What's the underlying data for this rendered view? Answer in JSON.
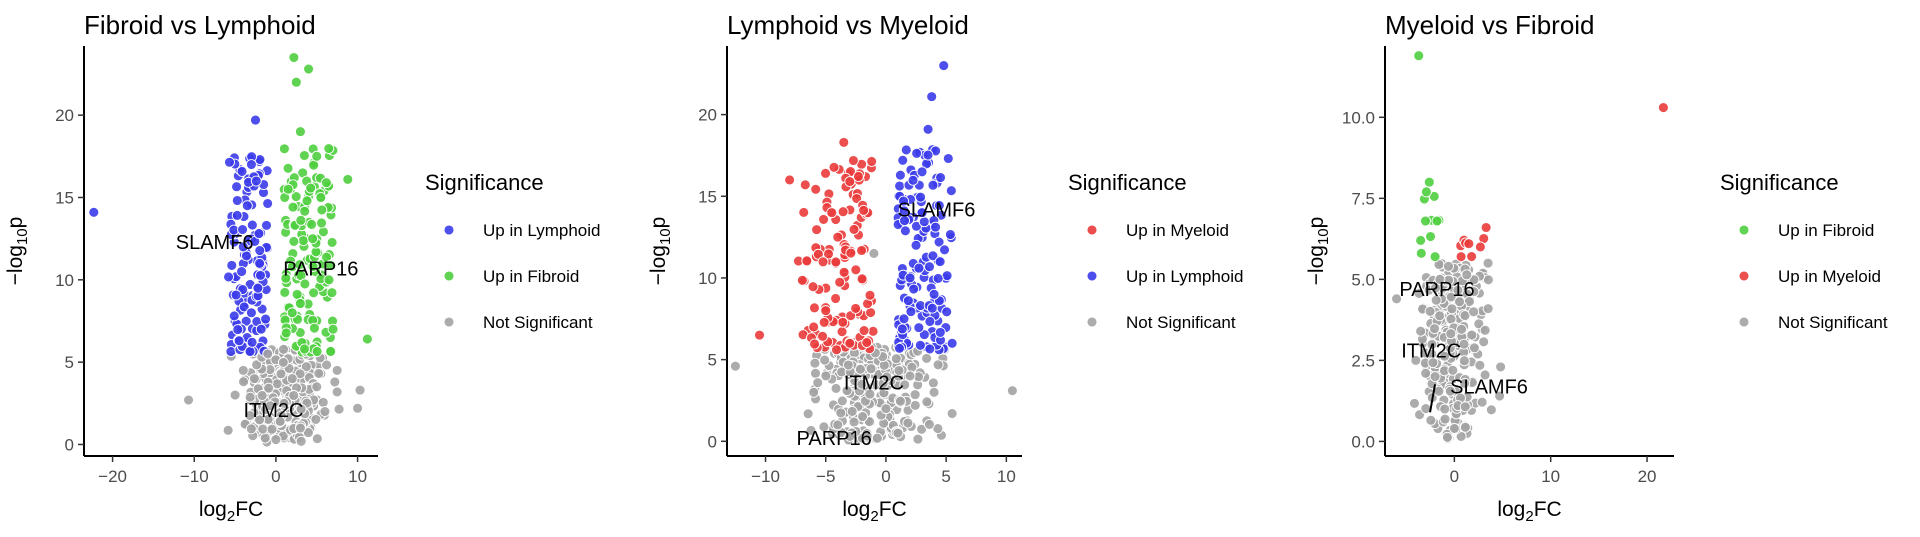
{
  "chart_data": [
    {
      "type": "scatter",
      "title": "Fibroid vs Lymphoid",
      "xlabel": "log2FC",
      "ylabel": "−log10p",
      "xlim": [
        -23.5,
        12.5
      ],
      "ylim": [
        -0.7,
        24.2
      ],
      "xticks": [
        -20,
        -10,
        0,
        10
      ],
      "yticks": [
        0,
        5,
        10,
        15,
        20
      ],
      "legend": {
        "title": "Significance",
        "position": "right",
        "entries": [
          {
            "label": "Up in Lymphoid",
            "color": "#3b3bea"
          },
          {
            "label": "Up in Fibroid",
            "color": "#4fcf3f"
          },
          {
            "label": "Not Significant",
            "color": "#a3a3a3"
          }
        ]
      },
      "series": [
        {
          "name": "Up in Lymphoid",
          "color": "#3b3bea",
          "points": [
            [
              -22.3,
              14.1
            ],
            [
              -2.5,
              19.7
            ],
            [
              -3.0,
              17.0
            ],
            [
              -2.4,
              16.0
            ],
            [
              -4.0,
              12.0
            ],
            [
              -3.0,
              8.0
            ],
            [
              -4.5,
              6.3
            ],
            [
              -2.0,
              11.0
            ],
            [
              -3.5,
              14.5
            ],
            [
              -2.2,
              9.5
            ],
            [
              -4.2,
              10.5
            ],
            [
              -1.8,
              7.0
            ]
          ]
        },
        {
          "name": "Up in Fibroid",
          "color": "#4fcf3f",
          "points": [
            [
              2.2,
              23.5
            ],
            [
              4.0,
              22.8
            ],
            [
              2.5,
              22.0
            ],
            [
              8.8,
              16.1
            ],
            [
              11.2,
              6.4
            ],
            [
              3.0,
              19.0
            ],
            [
              5.5,
              15.0
            ],
            [
              4.5,
              12.5
            ],
            [
              2.0,
              8.0
            ],
            [
              6.5,
              10.0
            ],
            [
              1.5,
              15.5
            ],
            [
              3.5,
              5.8
            ],
            [
              7.0,
              7.0
            ],
            [
              5.0,
              17.5
            ]
          ]
        },
        {
          "name": "Not Significant",
          "color": "#a3a3a3",
          "points": [
            [
              -10.7,
              2.7
            ],
            [
              -5.0,
              3.0
            ],
            [
              10.0,
              2.2
            ],
            [
              10.3,
              3.3
            ],
            [
              0.0,
              0.3
            ],
            [
              3.0,
              1.0
            ],
            [
              -2.0,
              1.5
            ],
            [
              1.0,
              2.5
            ],
            [
              5.0,
              3.5
            ],
            [
              -4.0,
              4.5
            ],
            [
              6.0,
              2.0
            ],
            [
              -1.0,
              5.5
            ],
            [
              2.0,
              4.0
            ],
            [
              7.5,
              4.5
            ]
          ]
        }
      ],
      "annotations": [
        {
          "text": "SLAMF6",
          "x": -7.5,
          "y": 12.3
        },
        {
          "text": "PARP16",
          "x": 5.5,
          "y": 10.7
        },
        {
          "text": "ITM2C",
          "x": -0.3,
          "y": 2.1
        }
      ]
    },
    {
      "type": "scatter",
      "title": "Lymphoid vs Myeloid",
      "xlabel": "log2FC",
      "ylabel": "−log10p",
      "xlim": [
        -13.2,
        11.3
      ],
      "ylim": [
        -0.9,
        24.2
      ],
      "xticks": [
        -10,
        -5,
        0,
        5,
        10
      ],
      "yticks": [
        0,
        5,
        10,
        15,
        20
      ],
      "legend": {
        "title": "Significance",
        "position": "right",
        "entries": [
          {
            "label": "Up in Myeloid",
            "color": "#ea3b3b"
          },
          {
            "label": "Up in Lymphoid",
            "color": "#3b3bea"
          },
          {
            "label": "Not Significant",
            "color": "#a3a3a3"
          }
        ]
      },
      "series": [
        {
          "name": "Up in Myeloid",
          "color": "#ea3b3b",
          "points": [
            [
              -3.5,
              18.3
            ],
            [
              -8.0,
              16.0
            ],
            [
              -6.7,
              15.7
            ],
            [
              -3.0,
              15.9
            ],
            [
              -10.5,
              6.5
            ],
            [
              -4.0,
              12.5
            ],
            [
              -5.0,
              8.0
            ],
            [
              -2.5,
              10.5
            ],
            [
              -6.0,
              7.0
            ],
            [
              -3.0,
              6.0
            ],
            [
              -4.5,
              14.0
            ]
          ]
        },
        {
          "name": "Up in Lymphoid",
          "color": "#3b3bea",
          "points": [
            [
              4.8,
              23.0
            ],
            [
              3.8,
              21.1
            ],
            [
              3.5,
              19.1
            ],
            [
              3.0,
              16.5
            ],
            [
              5.5,
              6.0
            ],
            [
              2.5,
              12.0
            ],
            [
              4.0,
              9.0
            ],
            [
              1.5,
              7.5
            ],
            [
              3.0,
              14.0
            ],
            [
              4.5,
              11.0
            ],
            [
              2.0,
              10.0
            ]
          ]
        },
        {
          "name": "Not Significant",
          "color": "#a3a3a3",
          "points": [
            [
              -12.5,
              4.6
            ],
            [
              10.5,
              3.1
            ],
            [
              5.5,
              1.7
            ],
            [
              -4.0,
              1.0
            ],
            [
              0.0,
              2.0
            ],
            [
              -2.0,
              3.5
            ],
            [
              2.0,
              4.0
            ],
            [
              -6.0,
              3.0
            ],
            [
              1.0,
              0.5
            ],
            [
              -1.0,
              11.5
            ],
            [
              -3.0,
              0.3
            ],
            [
              4.0,
              3.0
            ]
          ]
        }
      ],
      "annotations": [
        {
          "text": "SLAMF6",
          "x": 4.2,
          "y": 14.2
        },
        {
          "text": "ITM2C",
          "x": -1.0,
          "y": 3.6
        },
        {
          "text": "PARP16",
          "x": -4.3,
          "y": 0.2
        }
      ]
    },
    {
      "type": "scatter",
      "title": "Myeloid vs Fibroid",
      "xlabel": "log2FC",
      "ylabel": "−log10p",
      "xlim": [
        -7.2,
        22.8
      ],
      "ylim": [
        -0.45,
        12.2
      ],
      "xticks": [
        0,
        10,
        20
      ],
      "yticks": [
        0.0,
        2.5,
        5.0,
        7.5,
        10.0
      ],
      "legend": {
        "title": "Significance",
        "position": "right",
        "entries": [
          {
            "label": "Up in Fibroid",
            "color": "#4fcf3f"
          },
          {
            "label": "Up in Myeloid",
            "color": "#ea3b3b"
          },
          {
            "label": "Not Significant",
            "color": "#a3a3a3"
          }
        ]
      },
      "series": [
        {
          "name": "Up in Fibroid",
          "color": "#4fcf3f",
          "points": [
            [
              -3.7,
              11.9
            ],
            [
              -2.6,
              8.0
            ],
            [
              -2.9,
              7.7
            ],
            [
              -3.0,
              6.8
            ],
            [
              -1.8,
              6.8
            ],
            [
              -3.5,
              6.2
            ],
            [
              -2.0,
              5.7
            ]
          ]
        },
        {
          "name": "Up in Myeloid",
          "color": "#ea3b3b",
          "points": [
            [
              21.7,
              10.3
            ],
            [
              3.3,
              6.6
            ],
            [
              1.5,
              6.1
            ],
            [
              2.7,
              6.0
            ],
            [
              0.7,
              5.7
            ]
          ]
        },
        {
          "name": "Not Significant",
          "color": "#a3a3a3",
          "points": [
            [
              -6.0,
              4.4
            ],
            [
              -3.5,
              3.4
            ],
            [
              -4.0,
              2.5
            ],
            [
              4.8,
              2.3
            ],
            [
              4.7,
              1.4
            ],
            [
              -1.0,
              1.0
            ],
            [
              1.0,
              3.0
            ],
            [
              -2.0,
              2.0
            ],
            [
              3.5,
              5.5
            ],
            [
              0.0,
              0.4
            ],
            [
              2.0,
              4.0
            ],
            [
              -1.5,
              5.0
            ]
          ]
        }
      ],
      "annotations": [
        {
          "text": "PARP16",
          "x": -1.8,
          "y": 4.7
        },
        {
          "text": "ITM2C",
          "x": -2.4,
          "y": 2.8
        },
        {
          "text": "SLAMF6",
          "x": 3.6,
          "y": 1.7
        }
      ]
    }
  ]
}
